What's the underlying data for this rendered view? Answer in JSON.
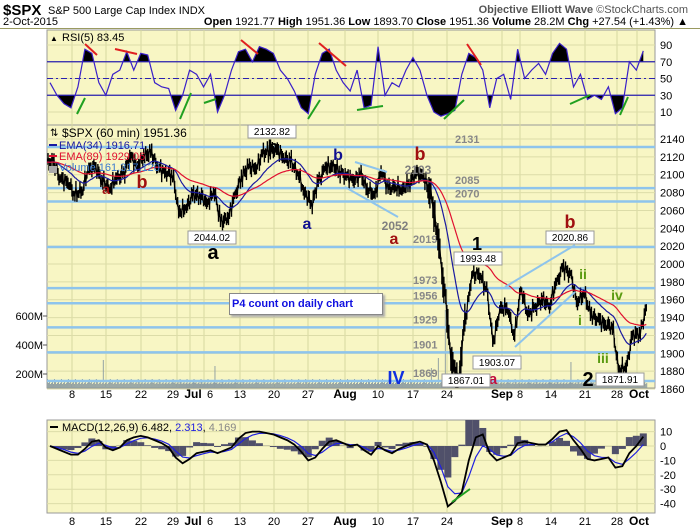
{
  "header": {
    "symbol": "$SPX",
    "name": "S&P 500 Large Cap Index",
    "exchange": "INDX",
    "date": "2-Oct-2015",
    "brand": "Objective Elliott Wave",
    "brand_site": "©StockCharts.com",
    "open_label": "Open",
    "open": "1921.77",
    "high_label": "High",
    "high": "1951.36",
    "low_label": "Low",
    "low": "1893.70",
    "close_label": "Close",
    "close": "1951.36",
    "volume_label": "Volume",
    "volume": "28.2M",
    "chg_label": "Chg",
    "chg": "+27.54 (+1.43%) ▲"
  },
  "note": "P4 count on daily chart",
  "chart_data": [
    {
      "type": "line",
      "panel": "rsi",
      "legend": "RSI(5) 83.45",
      "ylim": [
        0,
        100
      ],
      "yticks": [
        "90",
        "70",
        "50",
        "30",
        "10"
      ],
      "reference_lines": [
        70,
        50,
        30
      ],
      "values": [
        45,
        30,
        20,
        15,
        40,
        85,
        80,
        45,
        30,
        55,
        60,
        82,
        60,
        80,
        78,
        45,
        40,
        38,
        12,
        30,
        60,
        55,
        40,
        55,
        10,
        30,
        60,
        82,
        85,
        70,
        88,
        85,
        80,
        60,
        50,
        35,
        15,
        8,
        55,
        80,
        85,
        60,
        45,
        35,
        60,
        15,
        18,
        88,
        30,
        45,
        40,
        60,
        75,
        60,
        30,
        10,
        5,
        8,
        12,
        55,
        80,
        75,
        60,
        15,
        50,
        55,
        25,
        85,
        50,
        60,
        68,
        55,
        80,
        92,
        85,
        40,
        55,
        25,
        30,
        25,
        40,
        8,
        15,
        70,
        60,
        83
      ],
      "colors": {
        "line": "#3a20c8",
        "fill": "#000000",
        "divergence_bear": "#e02020",
        "divergence_bull": "#20a020"
      }
    },
    {
      "type": "line",
      "panel": "price",
      "title": "$SPX (60 min) 1951.36",
      "legend": [
        "EMA(34) 1916.71",
        "EMA(89) 1929.06",
        "Volume 161,317,120"
      ],
      "dates": [
        "Jun 3",
        "Jun 4",
        "Jun 5",
        "Jun 8",
        "Jun 9",
        "Jun 10",
        "Jun 11",
        "Jun 12",
        "Jun 15",
        "Jun 16",
        "Jun 17",
        "Jun 18",
        "Jun 19",
        "Jun 22",
        "Jun 23",
        "Jun 24",
        "Jun 25",
        "Jun 26",
        "Jun 29",
        "Jun 30",
        "Jul 1",
        "Jul 2",
        "Jul 6",
        "Jul 7",
        "Jul 8",
        "Jul 9",
        "Jul 10",
        "Jul 13",
        "Jul 14",
        "Jul 15",
        "Jul 16",
        "Jul 17",
        "Jul 20",
        "Jul 21",
        "Jul 22",
        "Jul 23",
        "Jul 24",
        "Jul 27",
        "Jul 28",
        "Jul 29",
        "Jul 30",
        "Jul 31",
        "Aug 3",
        "Aug 4",
        "Aug 5",
        "Aug 6",
        "Aug 7",
        "Aug 10",
        "Aug 11",
        "Aug 12",
        "Aug 13",
        "Aug 14",
        "Aug 17",
        "Aug 18",
        "Aug 19",
        "Aug 20",
        "Aug 21",
        "Aug 24",
        "Aug 25",
        "Aug 26",
        "Aug 27",
        "Aug 28",
        "Aug 31",
        "Sep 1",
        "Sep 2",
        "Sep 3",
        "Sep 4",
        "Sep 8",
        "Sep 9",
        "Sep 10",
        "Sep 11",
        "Sep 14",
        "Sep 15",
        "Sep 16",
        "Sep 17",
        "Sep 18",
        "Sep 21",
        "Sep 22",
        "Sep 23",
        "Sep 24",
        "Sep 25",
        "Sep 28",
        "Sep 29",
        "Sep 30",
        "Oct 1",
        "Oct 2"
      ],
      "close": [
        2114,
        2095,
        2092,
        2079,
        2080,
        2105,
        2108,
        2094,
        2084,
        2096,
        2100,
        2121,
        2110,
        2122,
        2124,
        2108,
        2102,
        2101,
        2058,
        2063,
        2077,
        2077,
        2068,
        2081,
        2047,
        2052,
        2077,
        2099,
        2109,
        2107,
        2124,
        2127,
        2128,
        2119,
        2114,
        2102,
        2079,
        2068,
        2093,
        2109,
        2109,
        2104,
        2098,
        2094,
        2100,
        2084,
        2078,
        2104,
        2084,
        2086,
        2083,
        2091,
        2102,
        2097,
        2079,
        2035,
        1971,
        1893,
        1867,
        1940,
        1988,
        1989,
        1972,
        1914,
        1949,
        1951,
        1921,
        1970,
        1943,
        1952,
        1961,
        1953,
        1978,
        1996,
        1990,
        1958,
        1967,
        1943,
        1938,
        1932,
        1931,
        1882,
        1884,
        1920,
        1923,
        1951
      ],
      "ylim": [
        1855,
        2150
      ],
      "yticks": [
        "2140",
        "2120",
        "2100",
        "2080",
        "2060",
        "2040",
        "2020",
        "2000",
        "1980",
        "1960",
        "1940",
        "1920",
        "1900",
        "1880",
        "1860"
      ],
      "volume_ticks": [
        "600M",
        "400M",
        "200M"
      ],
      "xticks": [
        "8",
        "15",
        "22",
        "29",
        "Jul",
        "6",
        "13",
        "20",
        "27",
        "Aug",
        "10",
        "17",
        "24",
        "Sep",
        "8",
        "14",
        "21",
        "28",
        "Oct"
      ],
      "levels": [
        "2131",
        "2085",
        "2070",
        "2019",
        "1973",
        "1956",
        "1929",
        "1901",
        "1869"
      ],
      "annotations": [
        {
          "text": "b",
          "color": "#a01010"
        },
        {
          "text": "a",
          "color": "#a01010"
        },
        {
          "text": "2132.82",
          "box": true
        },
        {
          "text": "b",
          "color": "#000000"
        },
        {
          "text": "2044.02",
          "box": true
        },
        {
          "text": "a",
          "color": "#000000"
        },
        {
          "text": "a",
          "color": "#101090"
        },
        {
          "text": "b",
          "color": "#101090"
        },
        {
          "text": "2052",
          "color": "#808080"
        },
        {
          "text": "a",
          "color": "#a01010"
        },
        {
          "text": "b",
          "color": "#a01010"
        },
        {
          "text": "2103",
          "color": "#808080"
        },
        {
          "text": "1",
          "color": "#000000"
        },
        {
          "text": "1993.48",
          "box": true
        },
        {
          "text": "b",
          "color": "#a01010"
        },
        {
          "text": "2020.86",
          "box": true
        },
        {
          "text": "ii",
          "color": "#5a9a10"
        },
        {
          "text": "i",
          "color": "#5a9a10"
        },
        {
          "text": "iv",
          "color": "#5a9a10"
        },
        {
          "text": "iii",
          "color": "#5a9a10"
        },
        {
          "text": "1903.07",
          "box": true
        },
        {
          "text": "a",
          "color": "#c01040"
        },
        {
          "text": "IV",
          "color": "#1030e0"
        },
        {
          "text": "1867.01",
          "box": true
        },
        {
          "text": "1871.91",
          "box": true
        },
        {
          "text": "2",
          "color": "#000000"
        }
      ],
      "colors": {
        "price": "#000000",
        "ema34": "#1a1aa0",
        "ema89": "#e01030",
        "volume": "#8a9aa0",
        "levels": "#8ec4ec"
      }
    },
    {
      "type": "line",
      "panel": "macd",
      "legend": [
        "MACD(12,26,9) 6.482",
        "2.313",
        "4.169"
      ],
      "ylim": [
        -47,
        17
      ],
      "yticks": [
        "10",
        "0",
        "-10",
        "-20",
        "-30",
        "-40"
      ],
      "macd": [
        0,
        -2,
        -4,
        -6,
        -6,
        -2,
        3,
        4,
        -1,
        -3,
        -1,
        4,
        6,
        7,
        6,
        4,
        2,
        -1,
        -8,
        -12,
        -9,
        -5,
        -4,
        -3,
        -5,
        -3,
        -1,
        5,
        9,
        10,
        10,
        9,
        8,
        6,
        4,
        1,
        -4,
        -10,
        -8,
        -2,
        3,
        4,
        2,
        0,
        1,
        -3,
        -6,
        0,
        -3,
        -5,
        -2,
        0,
        2,
        3,
        1,
        -10,
        -25,
        -42,
        -38,
        -32,
        -10,
        6,
        8,
        -5,
        -10,
        -8,
        -6,
        2,
        3,
        2,
        1,
        1,
        5,
        10,
        11,
        4,
        -2,
        -9,
        -10,
        -9,
        -8,
        -15,
        -14,
        -5,
        0,
        6.5
      ],
      "colors": {
        "macd": "#000000",
        "signal": "#2020e0",
        "histogram": "#50506a"
      }
    }
  ]
}
